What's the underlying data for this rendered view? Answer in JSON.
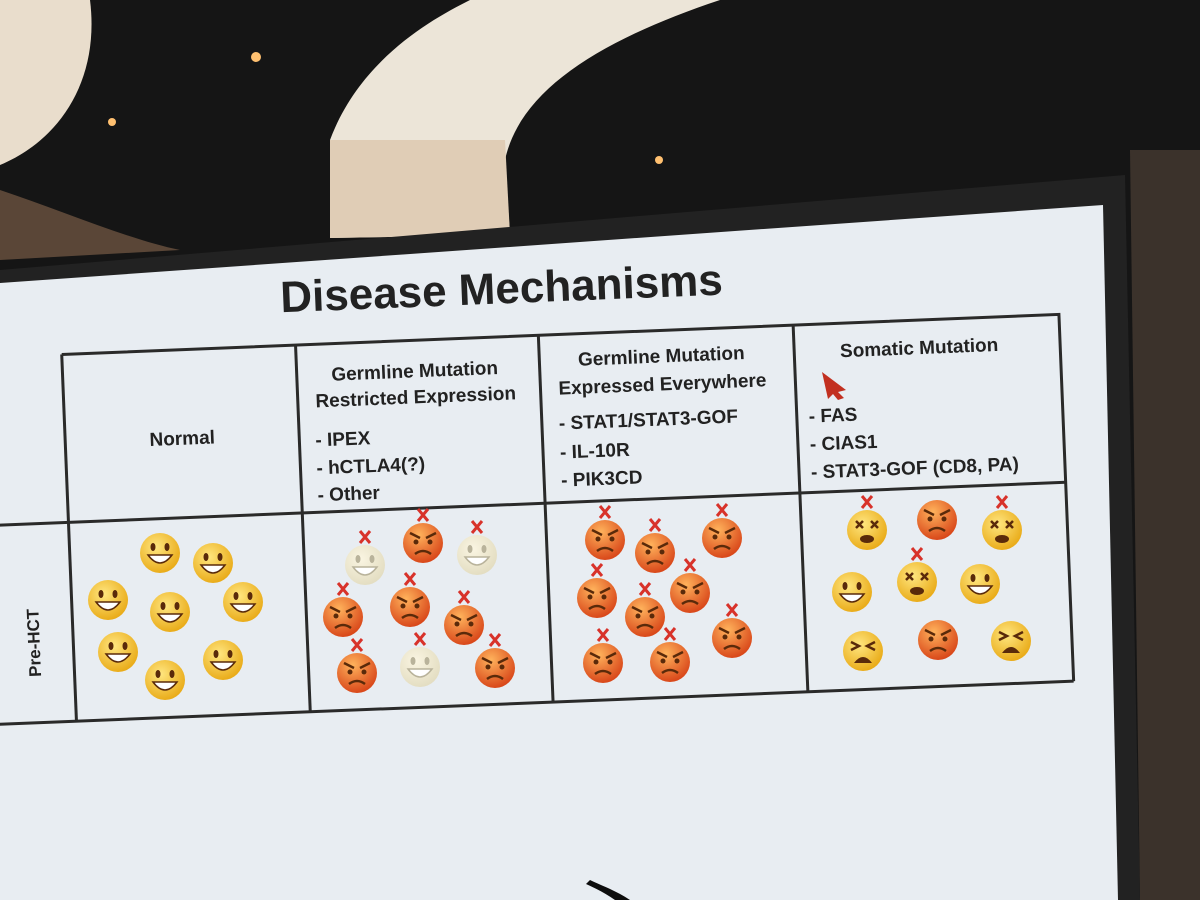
{
  "title": "Disease Mechanisms",
  "row_label": "Pre-HCT",
  "columns": [
    {
      "heading": [
        "Normal"
      ],
      "items": []
    },
    {
      "heading": [
        "Germline Mutation",
        "Restricted Expression"
      ],
      "items": [
        "- IPEX",
        "- hCTLA4(?)",
        "- Other"
      ]
    },
    {
      "heading": [
        "Germline Mutation",
        "Expressed Everywhere"
      ],
      "items": [
        "- STAT1/STAT3-GOF",
        "- IL-10R",
        "- PIK3CD"
      ]
    },
    {
      "heading": [
        "Somatic Mutation"
      ],
      "items": [
        "- FAS",
        "- CIAS1",
        "- STAT3-GOF (CD8, PA)"
      ]
    }
  ]
}
